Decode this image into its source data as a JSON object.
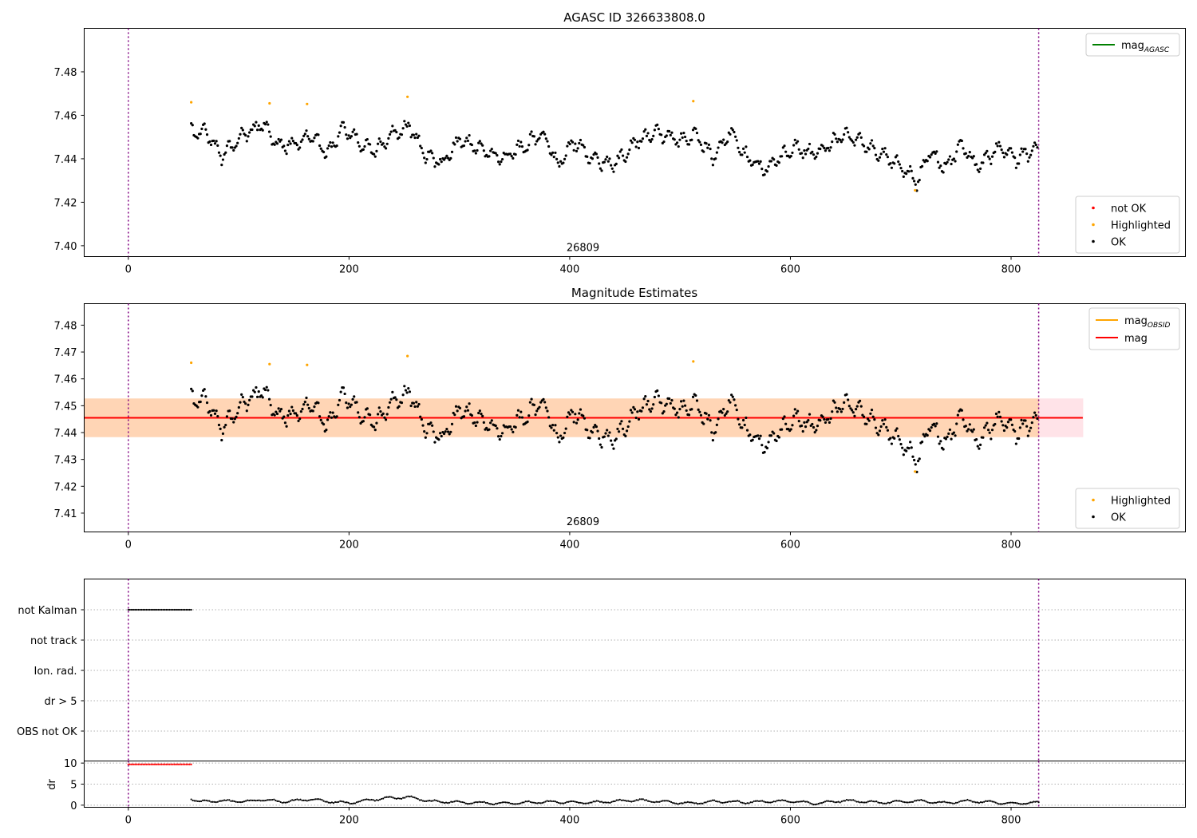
{
  "chart_data": [
    {
      "type": "scatter",
      "title": "AGASC ID 326633808.0",
      "xlim": [
        -40,
        958
      ],
      "ylim": [
        7.395,
        7.5
      ],
      "xticks": [
        0,
        200,
        400,
        600,
        800
      ],
      "yticks": [
        7.4,
        7.42,
        7.44,
        7.46,
        7.48
      ],
      "grid": false,
      "vlines": [
        0,
        825
      ],
      "obs_label": {
        "text": "26809",
        "x": 412,
        "y": 7.3975
      },
      "legends": [
        {
          "placement": "top-right",
          "entries": [
            {
              "label": "mag",
              "sub": "AGASC",
              "color": "#008000",
              "kind": "line"
            }
          ]
        },
        {
          "placement": "bottom-right",
          "entries": [
            {
              "label": "not OK",
              "color": "#ff0000",
              "kind": "dot"
            },
            {
              "label": "Highlighted",
              "color": "#ffa500",
              "kind": "dot"
            },
            {
              "label": "OK",
              "color": "#000000",
              "kind": "dot"
            }
          ]
        }
      ],
      "highlighted_points": [
        [
          57,
          7.466
        ],
        [
          128,
          7.4655
        ],
        [
          162,
          7.4652
        ],
        [
          253,
          7.4685
        ],
        [
          512,
          7.4665
        ],
        [
          713,
          7.4255
        ]
      ],
      "ok_series": {
        "x_start": 57,
        "x_end": 825,
        "step": 1.2,
        "mean": 7.4455,
        "control": [
          [
            57,
            7.452
          ],
          [
            70,
            7.452
          ],
          [
            85,
            7.441
          ],
          [
            100,
            7.449
          ],
          [
            120,
            7.456
          ],
          [
            135,
            7.447
          ],
          [
            150,
            7.446
          ],
          [
            165,
            7.452
          ],
          [
            180,
            7.442
          ],
          [
            195,
            7.455
          ],
          [
            210,
            7.447
          ],
          [
            225,
            7.444
          ],
          [
            240,
            7.451
          ],
          [
            255,
            7.455
          ],
          [
            270,
            7.441
          ],
          [
            285,
            7.438
          ],
          [
            300,
            7.449
          ],
          [
            320,
            7.444
          ],
          [
            340,
            7.44
          ],
          [
            360,
            7.446
          ],
          [
            375,
            7.452
          ],
          [
            390,
            7.437
          ],
          [
            405,
            7.448
          ],
          [
            420,
            7.44
          ],
          [
            440,
            7.437
          ],
          [
            460,
            7.448
          ],
          [
            480,
            7.452
          ],
          [
            500,
            7.448
          ],
          [
            515,
            7.451
          ],
          [
            530,
            7.44
          ],
          [
            545,
            7.453
          ],
          [
            560,
            7.441
          ],
          [
            575,
            7.435
          ],
          [
            590,
            7.44
          ],
          [
            605,
            7.446
          ],
          [
            620,
            7.442
          ],
          [
            635,
            7.446
          ],
          [
            650,
            7.452
          ],
          [
            665,
            7.447
          ],
          [
            680,
            7.443
          ],
          [
            695,
            7.438
          ],
          [
            705,
            7.435
          ],
          [
            715,
            7.428
          ],
          [
            725,
            7.444
          ],
          [
            740,
            7.436
          ],
          [
            755,
            7.446
          ],
          [
            770,
            7.436
          ],
          [
            790,
            7.446
          ],
          [
            805,
            7.44
          ],
          [
            825,
            7.445
          ]
        ]
      }
    },
    {
      "type": "scatter",
      "title": "Magnitude Estimates",
      "xlim": [
        -40,
        958
      ],
      "ylim": [
        7.403,
        7.488
      ],
      "xticks": [
        0,
        200,
        400,
        600,
        800
      ],
      "yticks": [
        7.41,
        7.42,
        7.43,
        7.44,
        7.45,
        7.46,
        7.47,
        7.48
      ],
      "grid": false,
      "vlines": [
        0,
        825
      ],
      "obs_label": {
        "text": "26809",
        "x": 412,
        "y": 7.4055
      },
      "mag_line": {
        "y": 7.4455,
        "x": [
          -40,
          865
        ]
      },
      "band_outer": {
        "y": [
          7.4383,
          7.4527
        ],
        "x": [
          -40,
          865
        ]
      },
      "band_inner": {
        "y": [
          7.4383,
          7.4527
        ],
        "x": [
          -40,
          825
        ]
      },
      "legends": [
        {
          "placement": "top-right",
          "entries": [
            {
              "label": "mag",
              "sub": "OBSID",
              "color": "#ffa500",
              "kind": "line"
            },
            {
              "label": "mag",
              "color": "#ff0000",
              "kind": "line"
            }
          ]
        },
        {
          "placement": "bottom-right",
          "entries": [
            {
              "label": "Highlighted",
              "color": "#ffa500",
              "kind": "dot"
            },
            {
              "label": "OK",
              "color": "#000000",
              "kind": "dot"
            }
          ]
        }
      ]
    },
    {
      "type": "scatter",
      "title": "",
      "xlim": [
        -40,
        958
      ],
      "ylabels": [
        "not Kalman",
        "not track",
        "Ion. rad.",
        "dr > 5",
        "OBS not OK"
      ],
      "flag_points": {
        "row": "not Kalman",
        "x": [
          0,
          57
        ],
        "step": 1.5
      },
      "vlines": [
        0,
        825
      ],
      "grid_y": true
    },
    {
      "type": "line",
      "title": "",
      "ylabel": "dr",
      "xlim": [
        -40,
        958
      ],
      "ylim": [
        -0.5,
        10.5
      ],
      "xticks": [
        0,
        200,
        400,
        600,
        800
      ],
      "yticks": [
        0,
        5,
        10
      ],
      "capped_points": {
        "x": [
          0,
          57
        ],
        "y": 9.7,
        "step": 1.5,
        "color": "#ff0000"
      },
      "dr_points": {
        "x_start": 57,
        "x_end": 825,
        "step": 1.5,
        "control": [
          [
            57,
            1.6
          ],
          [
            65,
            0.8
          ],
          [
            80,
            1.0
          ],
          [
            110,
            0.9
          ],
          [
            120,
            1.4
          ],
          [
            140,
            0.8
          ],
          [
            165,
            1.4
          ],
          [
            180,
            0.9
          ],
          [
            200,
            0.5
          ],
          [
            230,
            1.6
          ],
          [
            255,
            1.9
          ],
          [
            275,
            0.9
          ],
          [
            300,
            0.7
          ],
          [
            340,
            0.4
          ],
          [
            380,
            0.8
          ],
          [
            420,
            0.6
          ],
          [
            460,
            1.2
          ],
          [
            480,
            0.9
          ],
          [
            510,
            0.4
          ],
          [
            530,
            0.9
          ],
          [
            560,
            0.7
          ],
          [
            600,
            1.0
          ],
          [
            620,
            0.4
          ],
          [
            650,
            1.1
          ],
          [
            680,
            0.6
          ],
          [
            720,
            1.0
          ],
          [
            740,
            0.5
          ],
          [
            760,
            1.0
          ],
          [
            800,
            0.4
          ],
          [
            825,
            0.6
          ]
        ]
      },
      "vlines": [
        0,
        825
      ]
    }
  ]
}
